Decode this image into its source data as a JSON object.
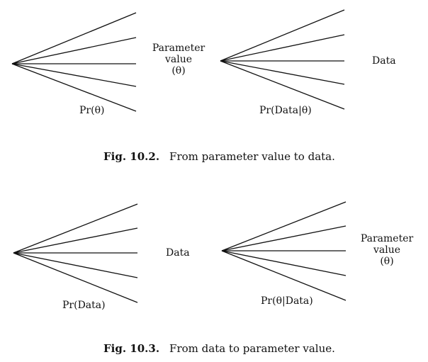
{
  "figure_10_2": {
    "left_tree": {
      "label": "Pr(θ)"
    },
    "middle_label": [
      "Parameter",
      "value",
      "(θ)"
    ],
    "right_tree": {
      "label": "Pr(Data|θ)"
    },
    "end_label": "Data",
    "caption": {
      "number": "Fig. 10.2.",
      "text": "From parameter value to data."
    }
  },
  "figure_10_3": {
    "left_tree": {
      "label": "Pr(Data)"
    },
    "middle_label": "Data",
    "right_tree": {
      "label": "Pr(θ|Data)"
    },
    "end_label": [
      "Parameter",
      "value",
      "(θ)"
    ],
    "caption": {
      "number": "Fig. 10.3.",
      "text": "From data to parameter value."
    }
  },
  "colors": {
    "line": "#111111",
    "background": "#ffffff"
  }
}
